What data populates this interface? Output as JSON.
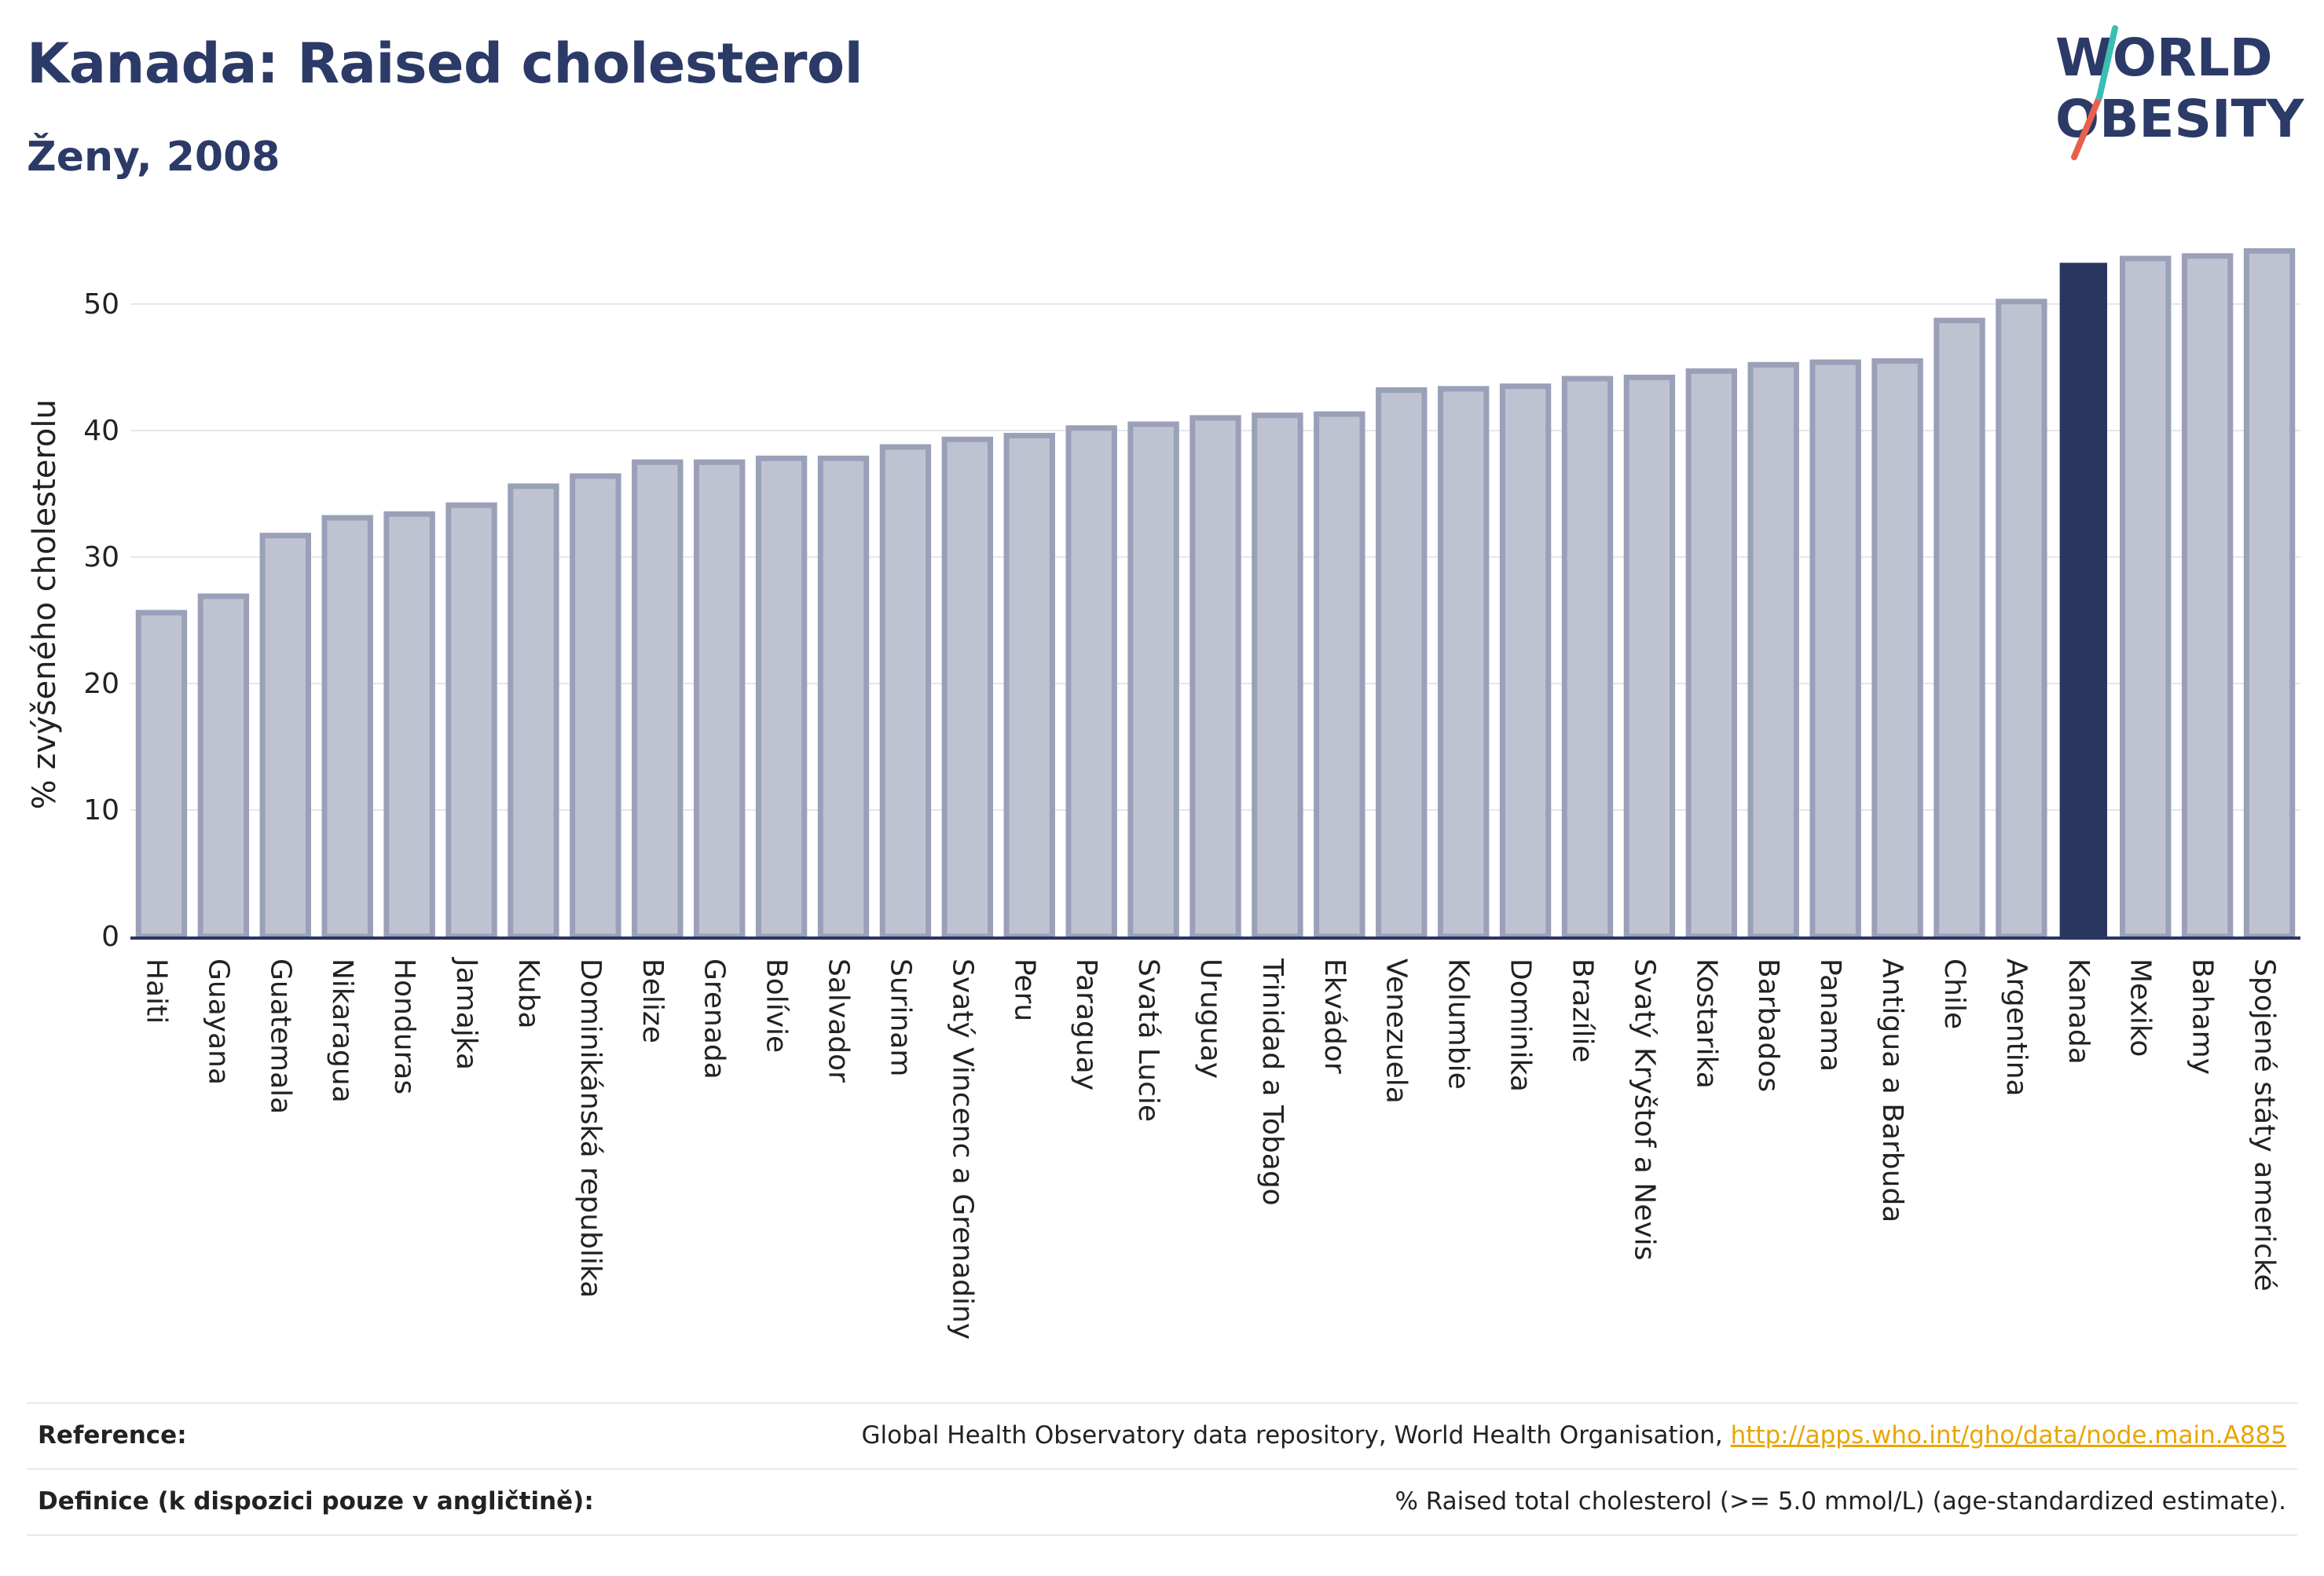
{
  "header": {
    "title": "Kanada: Raised cholesterol",
    "subtitle": "Ženy, 2008"
  },
  "logo": {
    "line1": "WORLD",
    "line2": "OBESITY",
    "accent_colors": [
      "#e8604c",
      "#3bbdb4"
    ]
  },
  "colors": {
    "bar_fill": "#bfc3d1",
    "bar_stroke": "#9aa0b8",
    "highlight_fill": "#2b3660",
    "axis": "#2b3660",
    "grid": "#e6e6ee"
  },
  "chart_data": {
    "type": "bar",
    "title": "",
    "xlabel": "",
    "ylabel": "% zvýšeného cholesterolu",
    "ylim": [
      0,
      55
    ],
    "yticks": [
      0,
      10,
      20,
      30,
      40,
      50
    ],
    "grid": true,
    "highlight": "Kanada",
    "categories": [
      "Haiti",
      "Guayana",
      "Guatemala",
      "Nikaragua",
      "Honduras",
      "Jamajka",
      "Kuba",
      "Dominikánská republika",
      "Belize",
      "Grenada",
      "Bolívie",
      "Salvador",
      "Surinam",
      "Svatý Vincenc a Grenadiny",
      "Peru",
      "Paraguay",
      "Svatá Lucie",
      "Uruguay",
      "Trinidad a Tobago",
      "Ekvádor",
      "Venezuela",
      "Kolumbie",
      "Dominika",
      "Brazílie",
      "Svatý Kryštof a Nevis",
      "Kostarika",
      "Barbados",
      "Panama",
      "Antigua a Barbuda",
      "Chile",
      "Argentina",
      "Kanada",
      "Mexiko",
      "Bahamy",
      "Spojené státy americké"
    ],
    "values": [
      25.6,
      26.9,
      31.7,
      33.1,
      33.4,
      34.1,
      35.6,
      36.4,
      37.5,
      37.5,
      37.8,
      37.8,
      38.7,
      39.3,
      39.6,
      40.2,
      40.5,
      41.0,
      41.2,
      41.3,
      43.2,
      43.3,
      43.5,
      44.1,
      44.2,
      44.7,
      45.2,
      45.4,
      45.5,
      48.7,
      50.2,
      53.2,
      53.6,
      53.8,
      54.2
    ]
  },
  "footer": {
    "reference_label": "Reference:",
    "reference_text": "Global Health Observatory data repository, World Health Organisation, ",
    "reference_link": "http://apps.who.int/gho/data/node.main.A885",
    "definition_label": "Definice (k dispozici pouze v angličtině):",
    "definition_text": "% Raised total cholesterol (>= 5.0 mmol/L) (age-standardized estimate)."
  }
}
